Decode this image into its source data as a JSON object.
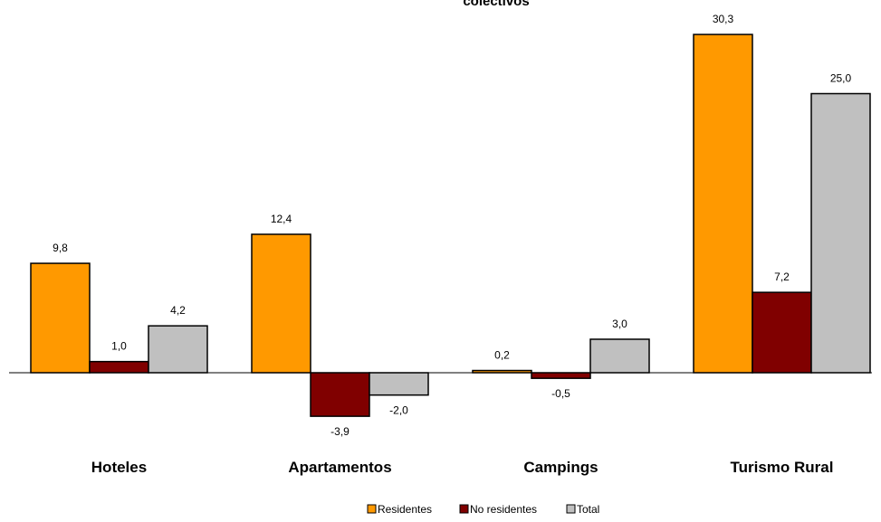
{
  "chart_data": {
    "type": "bar",
    "title": "colectivos",
    "categories": [
      "Hoteles",
      "Apartamentos",
      "Campings",
      "Turismo Rural"
    ],
    "series": [
      {
        "name": "Residentes",
        "values": [
          9.8,
          12.4,
          0.2,
          30.3
        ],
        "color": "#ff9900"
      },
      {
        "name": "No residentes",
        "values": [
          1.0,
          -3.9,
          -0.5,
          7.2
        ],
        "color": "#800000"
      },
      {
        "name": "Total",
        "values": [
          4.2,
          -2.0,
          3.0,
          25.0
        ],
        "color": "#c0c0c0"
      }
    ],
    "data_labels": [
      [
        "9,8",
        "12,4",
        "0,2",
        "30,3"
      ],
      [
        "1,0",
        "-3,9",
        "-0,5",
        "7,2"
      ],
      [
        "4,2",
        "-2,0",
        "3,0",
        "25,0"
      ]
    ],
    "ylim": [
      -4.0,
      32.0
    ],
    "grid": false,
    "legend_position": "bottom"
  }
}
